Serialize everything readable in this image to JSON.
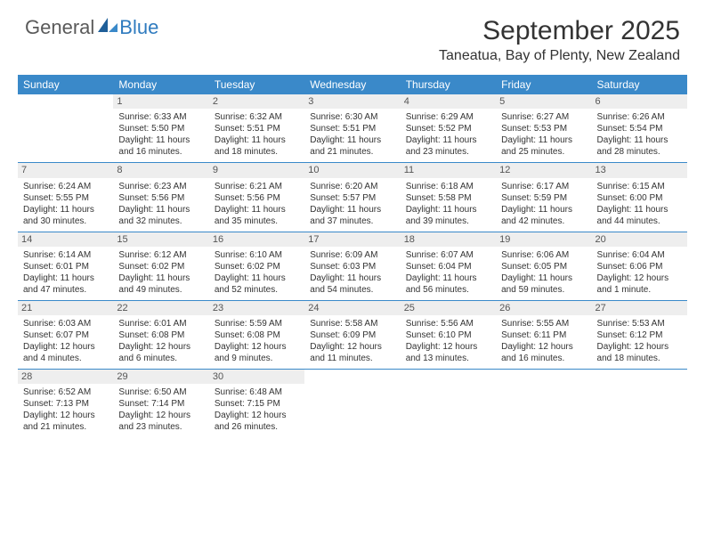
{
  "logo": {
    "general": "General",
    "blue": "Blue"
  },
  "title": "September 2025",
  "location": "Taneatua, Bay of Plenty, New Zealand",
  "colors": {
    "header_bg": "#3a89c9",
    "header_text": "#ffffff",
    "daynum_bg": "#eeeeee",
    "row_divider": "#3a89c9",
    "body_text": "#333333",
    "logo_gray": "#5a5a5a",
    "logo_blue": "#2f7bbf",
    "background": "#ffffff"
  },
  "typography": {
    "title_fontsize": 30,
    "location_fontsize": 16,
    "header_fontsize": 12,
    "cell_fontsize": 10,
    "daynum_fontsize": 11
  },
  "day_headers": [
    "Sunday",
    "Monday",
    "Tuesday",
    "Wednesday",
    "Thursday",
    "Friday",
    "Saturday"
  ],
  "weeks": [
    [
      null,
      {
        "n": "1",
        "sr": "Sunrise: 6:33 AM",
        "ss": "Sunset: 5:50 PM",
        "d1": "Daylight: 11 hours",
        "d2": "and 16 minutes."
      },
      {
        "n": "2",
        "sr": "Sunrise: 6:32 AM",
        "ss": "Sunset: 5:51 PM",
        "d1": "Daylight: 11 hours",
        "d2": "and 18 minutes."
      },
      {
        "n": "3",
        "sr": "Sunrise: 6:30 AM",
        "ss": "Sunset: 5:51 PM",
        "d1": "Daylight: 11 hours",
        "d2": "and 21 minutes."
      },
      {
        "n": "4",
        "sr": "Sunrise: 6:29 AM",
        "ss": "Sunset: 5:52 PM",
        "d1": "Daylight: 11 hours",
        "d2": "and 23 minutes."
      },
      {
        "n": "5",
        "sr": "Sunrise: 6:27 AM",
        "ss": "Sunset: 5:53 PM",
        "d1": "Daylight: 11 hours",
        "d2": "and 25 minutes."
      },
      {
        "n": "6",
        "sr": "Sunrise: 6:26 AM",
        "ss": "Sunset: 5:54 PM",
        "d1": "Daylight: 11 hours",
        "d2": "and 28 minutes."
      }
    ],
    [
      {
        "n": "7",
        "sr": "Sunrise: 6:24 AM",
        "ss": "Sunset: 5:55 PM",
        "d1": "Daylight: 11 hours",
        "d2": "and 30 minutes."
      },
      {
        "n": "8",
        "sr": "Sunrise: 6:23 AM",
        "ss": "Sunset: 5:56 PM",
        "d1": "Daylight: 11 hours",
        "d2": "and 32 minutes."
      },
      {
        "n": "9",
        "sr": "Sunrise: 6:21 AM",
        "ss": "Sunset: 5:56 PM",
        "d1": "Daylight: 11 hours",
        "d2": "and 35 minutes."
      },
      {
        "n": "10",
        "sr": "Sunrise: 6:20 AM",
        "ss": "Sunset: 5:57 PM",
        "d1": "Daylight: 11 hours",
        "d2": "and 37 minutes."
      },
      {
        "n": "11",
        "sr": "Sunrise: 6:18 AM",
        "ss": "Sunset: 5:58 PM",
        "d1": "Daylight: 11 hours",
        "d2": "and 39 minutes."
      },
      {
        "n": "12",
        "sr": "Sunrise: 6:17 AM",
        "ss": "Sunset: 5:59 PM",
        "d1": "Daylight: 11 hours",
        "d2": "and 42 minutes."
      },
      {
        "n": "13",
        "sr": "Sunrise: 6:15 AM",
        "ss": "Sunset: 6:00 PM",
        "d1": "Daylight: 11 hours",
        "d2": "and 44 minutes."
      }
    ],
    [
      {
        "n": "14",
        "sr": "Sunrise: 6:14 AM",
        "ss": "Sunset: 6:01 PM",
        "d1": "Daylight: 11 hours",
        "d2": "and 47 minutes."
      },
      {
        "n": "15",
        "sr": "Sunrise: 6:12 AM",
        "ss": "Sunset: 6:02 PM",
        "d1": "Daylight: 11 hours",
        "d2": "and 49 minutes."
      },
      {
        "n": "16",
        "sr": "Sunrise: 6:10 AM",
        "ss": "Sunset: 6:02 PM",
        "d1": "Daylight: 11 hours",
        "d2": "and 52 minutes."
      },
      {
        "n": "17",
        "sr": "Sunrise: 6:09 AM",
        "ss": "Sunset: 6:03 PM",
        "d1": "Daylight: 11 hours",
        "d2": "and 54 minutes."
      },
      {
        "n": "18",
        "sr": "Sunrise: 6:07 AM",
        "ss": "Sunset: 6:04 PM",
        "d1": "Daylight: 11 hours",
        "d2": "and 56 minutes."
      },
      {
        "n": "19",
        "sr": "Sunrise: 6:06 AM",
        "ss": "Sunset: 6:05 PM",
        "d1": "Daylight: 11 hours",
        "d2": "and 59 minutes."
      },
      {
        "n": "20",
        "sr": "Sunrise: 6:04 AM",
        "ss": "Sunset: 6:06 PM",
        "d1": "Daylight: 12 hours",
        "d2": "and 1 minute."
      }
    ],
    [
      {
        "n": "21",
        "sr": "Sunrise: 6:03 AM",
        "ss": "Sunset: 6:07 PM",
        "d1": "Daylight: 12 hours",
        "d2": "and 4 minutes."
      },
      {
        "n": "22",
        "sr": "Sunrise: 6:01 AM",
        "ss": "Sunset: 6:08 PM",
        "d1": "Daylight: 12 hours",
        "d2": "and 6 minutes."
      },
      {
        "n": "23",
        "sr": "Sunrise: 5:59 AM",
        "ss": "Sunset: 6:08 PM",
        "d1": "Daylight: 12 hours",
        "d2": "and 9 minutes."
      },
      {
        "n": "24",
        "sr": "Sunrise: 5:58 AM",
        "ss": "Sunset: 6:09 PM",
        "d1": "Daylight: 12 hours",
        "d2": "and 11 minutes."
      },
      {
        "n": "25",
        "sr": "Sunrise: 5:56 AM",
        "ss": "Sunset: 6:10 PM",
        "d1": "Daylight: 12 hours",
        "d2": "and 13 minutes."
      },
      {
        "n": "26",
        "sr": "Sunrise: 5:55 AM",
        "ss": "Sunset: 6:11 PM",
        "d1": "Daylight: 12 hours",
        "d2": "and 16 minutes."
      },
      {
        "n": "27",
        "sr": "Sunrise: 5:53 AM",
        "ss": "Sunset: 6:12 PM",
        "d1": "Daylight: 12 hours",
        "d2": "and 18 minutes."
      }
    ],
    [
      {
        "n": "28",
        "sr": "Sunrise: 6:52 AM",
        "ss": "Sunset: 7:13 PM",
        "d1": "Daylight: 12 hours",
        "d2": "and 21 minutes."
      },
      {
        "n": "29",
        "sr": "Sunrise: 6:50 AM",
        "ss": "Sunset: 7:14 PM",
        "d1": "Daylight: 12 hours",
        "d2": "and 23 minutes."
      },
      {
        "n": "30",
        "sr": "Sunrise: 6:48 AM",
        "ss": "Sunset: 7:15 PM",
        "d1": "Daylight: 12 hours",
        "d2": "and 26 minutes."
      },
      null,
      null,
      null,
      null
    ]
  ]
}
